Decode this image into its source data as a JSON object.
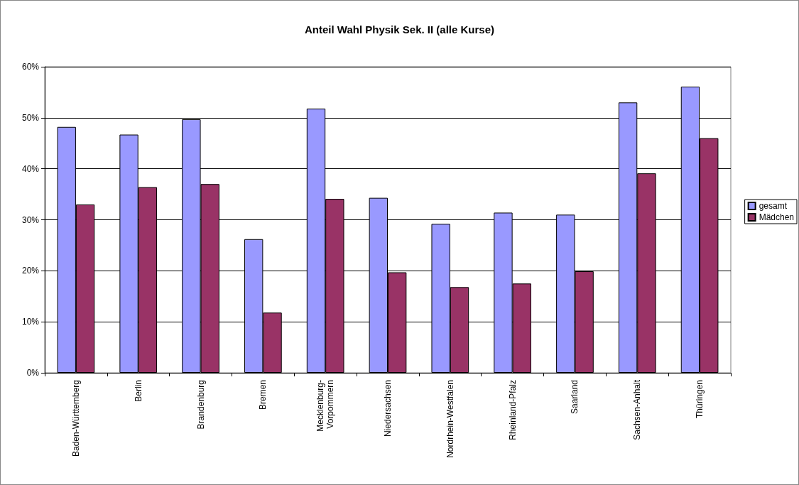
{
  "chart_data": {
    "type": "bar",
    "title": "Anteil Wahl Physik Sek. II (alle Kurse)",
    "categories": [
      "Baden-Württemberg",
      "Berlin",
      "Brandenburg",
      "Bremen",
      "Mecklenburg-Vorpommern",
      "Niedersachsen",
      "Nordrhein-Westfalen",
      "Rheinland-Pfalz",
      "Saarland",
      "Sachsen-Anhalt",
      "Thüringen"
    ],
    "series": [
      {
        "name": "gesamt",
        "color": "#9999ff",
        "values": [
          48.2,
          46.7,
          49.7,
          26.2,
          51.8,
          34.3,
          29.2,
          31.4,
          31.0,
          53.0,
          56.1
        ]
      },
      {
        "name": "Mädchen",
        "color": "#993366",
        "values": [
          33.0,
          36.4,
          37.0,
          11.8,
          34.1,
          19.7,
          16.8,
          17.5,
          19.9,
          39.1,
          46.0
        ]
      }
    ],
    "ylim": [
      0,
      60
    ],
    "yticks": [
      {
        "value": 0,
        "label": "0%"
      },
      {
        "value": 10,
        "label": "10%"
      },
      {
        "value": 20,
        "label": "20%"
      },
      {
        "value": 30,
        "label": "30%"
      },
      {
        "value": 40,
        "label": "40%"
      },
      {
        "value": 50,
        "label": "50%"
      },
      {
        "value": 60,
        "label": "60%"
      }
    ],
    "grid": "y",
    "legend": "right"
  }
}
